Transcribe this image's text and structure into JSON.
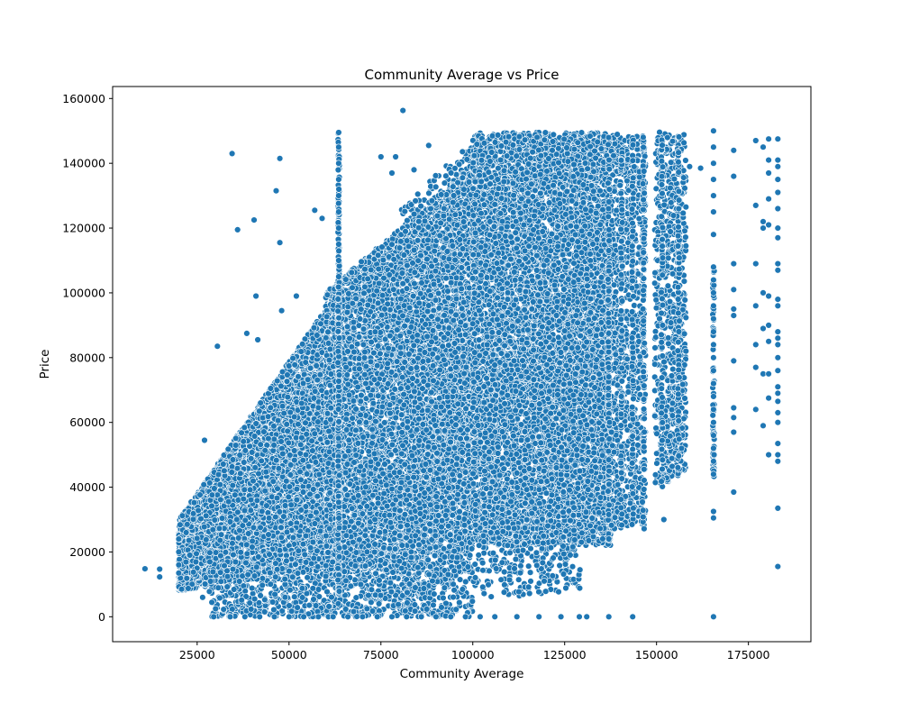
{
  "chart_data": {
    "type": "scatter",
    "title": "Community Average vs Price",
    "xlabel": "Community Average",
    "ylabel": "Price",
    "xlim": [
      2000,
      192000
    ],
    "ylim": [
      -7700,
      163700
    ],
    "xticks": [
      25000,
      50000,
      75000,
      100000,
      125000,
      150000,
      175000
    ],
    "yticks": [
      0,
      20000,
      40000,
      60000,
      80000,
      100000,
      120000,
      140000,
      160000
    ],
    "grid": false,
    "color": "#1f77b4",
    "series": [
      {
        "points": [
          [
            10800,
            14800
          ],
          [
            14800,
            14700
          ],
          [
            14800,
            12300
          ],
          [
            20000,
            24000
          ],
          [
            20000,
            20000
          ],
          [
            20000,
            16000
          ],
          [
            20000,
            13500
          ],
          [
            22000,
            26000
          ],
          [
            23000,
            19000
          ],
          [
            27000,
            54500
          ],
          [
            26500,
            6000
          ],
          [
            30500,
            83500
          ],
          [
            34500,
            143000
          ],
          [
            36000,
            119500
          ],
          [
            38500,
            87500
          ],
          [
            40500,
            122500
          ],
          [
            41000,
            99000
          ],
          [
            41500,
            85500
          ],
          [
            46500,
            131500
          ],
          [
            47500,
            141500
          ],
          [
            47500,
            115500
          ],
          [
            48000,
            94500
          ],
          [
            52000,
            99000
          ],
          [
            57000,
            125500
          ],
          [
            59000,
            123000
          ],
          [
            29500,
            0
          ],
          [
            34000,
            0
          ],
          [
            38000,
            0
          ],
          [
            42000,
            0
          ],
          [
            46000,
            0
          ],
          [
            50000,
            0
          ],
          [
            54000,
            0
          ],
          [
            58000,
            0
          ],
          [
            62000,
            0
          ],
          [
            66000,
            0
          ],
          [
            70000,
            0
          ],
          [
            74000,
            0
          ],
          [
            78000,
            0
          ],
          [
            82000,
            0
          ],
          [
            86000,
            0
          ],
          [
            90000,
            0
          ],
          [
            94000,
            0
          ],
          [
            98000,
            0
          ],
          [
            102000,
            0
          ],
          [
            106000,
            0
          ],
          [
            112000,
            0
          ],
          [
            118000,
            0
          ],
          [
            124000,
            0
          ],
          [
            129000,
            0
          ],
          [
            131000,
            0
          ],
          [
            137000,
            0
          ],
          [
            143500,
            0
          ],
          [
            165500,
            0
          ],
          [
            63500,
            149500
          ],
          [
            63500,
            145000
          ],
          [
            63500,
            140000
          ],
          [
            63500,
            135000
          ],
          [
            63500,
            130000
          ],
          [
            63500,
            125000
          ],
          [
            63500,
            120000
          ],
          [
            63500,
            115000
          ],
          [
            63500,
            110000
          ],
          [
            63500,
            105000
          ],
          [
            81000,
            156300
          ],
          [
            75000,
            142000
          ],
          [
            79000,
            142000
          ],
          [
            78000,
            137000
          ],
          [
            84000,
            138000
          ],
          [
            88000,
            145500
          ],
          [
            165500,
            150000
          ],
          [
            165500,
            145000
          ],
          [
            165500,
            140000
          ],
          [
            165500,
            135000
          ],
          [
            165500,
            130000
          ],
          [
            165500,
            125000
          ],
          [
            165500,
            118000
          ],
          [
            165500,
            108000
          ],
          [
            165500,
            104000
          ],
          [
            165500,
            100000
          ],
          [
            165500,
            96000
          ],
          [
            165500,
            92000
          ],
          [
            165500,
            88000
          ],
          [
            165500,
            84000
          ],
          [
            165500,
            80000
          ],
          [
            165500,
            76000
          ],
          [
            165500,
            72000
          ],
          [
            165500,
            68000
          ],
          [
            165500,
            64000
          ],
          [
            165500,
            60000
          ],
          [
            165500,
            56000
          ],
          [
            165500,
            52000
          ],
          [
            165500,
            48000
          ],
          [
            165500,
            44000
          ],
          [
            165500,
            32500
          ],
          [
            165500,
            30500
          ],
          [
            171000,
            144000
          ],
          [
            171000,
            136000
          ],
          [
            171000,
            109000
          ],
          [
            171000,
            101000
          ],
          [
            171000,
            95000
          ],
          [
            171000,
            93000
          ],
          [
            171000,
            79000
          ],
          [
            171000,
            64500
          ],
          [
            171000,
            61500
          ],
          [
            171000,
            57000
          ],
          [
            171000,
            38500
          ],
          [
            177000,
            147000
          ],
          [
            177000,
            127000
          ],
          [
            177000,
            109000
          ],
          [
            177000,
            96000
          ],
          [
            177000,
            84000
          ],
          [
            177000,
            77000
          ],
          [
            177000,
            64000
          ],
          [
            179000,
            145000
          ],
          [
            179000,
            122000
          ],
          [
            179000,
            120000
          ],
          [
            179000,
            100000
          ],
          [
            179000,
            89000
          ],
          [
            179000,
            75000
          ],
          [
            179000,
            59000
          ],
          [
            180500,
            147500
          ],
          [
            180500,
            141000
          ],
          [
            180500,
            137000
          ],
          [
            180500,
            129000
          ],
          [
            180500,
            121000
          ],
          [
            180500,
            99000
          ],
          [
            180500,
            90000
          ],
          [
            180500,
            85000
          ],
          [
            180500,
            75000
          ],
          [
            180500,
            67500
          ],
          [
            180500,
            50000
          ],
          [
            183000,
            147500
          ],
          [
            183000,
            141000
          ],
          [
            183000,
            139000
          ],
          [
            183000,
            135000
          ],
          [
            183000,
            131000
          ],
          [
            183000,
            126000
          ],
          [
            183000,
            120000
          ],
          [
            183000,
            117000
          ],
          [
            183000,
            109000
          ],
          [
            183000,
            107000
          ],
          [
            183000,
            98000
          ],
          [
            183000,
            96000
          ],
          [
            183000,
            88000
          ],
          [
            183000,
            86000
          ],
          [
            183000,
            84000
          ],
          [
            183000,
            80000
          ],
          [
            183000,
            76000
          ],
          [
            183000,
            71000
          ],
          [
            183000,
            69000
          ],
          [
            183000,
            66500
          ],
          [
            183000,
            63000
          ],
          [
            183000,
            60000
          ],
          [
            183000,
            53500
          ],
          [
            183000,
            50000
          ],
          [
            183000,
            48000
          ],
          [
            183000,
            33500
          ],
          [
            183000,
            15500
          ],
          [
            152000,
            30000
          ],
          [
            156000,
            60500
          ],
          [
            158000,
            82000
          ],
          [
            159000,
            139000
          ],
          [
            162000,
            138500
          ],
          [
            158000,
            126500
          ],
          [
            158000,
            114500
          ]
        ]
      }
    ],
    "density_regions": [
      {
        "x0": 20000,
        "x1": 60000,
        "ylow0": 8000,
        "ylow1": 15000,
        "yhigh0": 30000,
        "yhigh1": 95000,
        "n": 6500,
        "seed": 11
      },
      {
        "x0": 28000,
        "x1": 100000,
        "ylow0": 0,
        "ylow1": 0,
        "yhigh0": 20000,
        "yhigh1": 22000,
        "n": 1300,
        "seed": 23
      },
      {
        "x0": 60000,
        "x1": 100000,
        "ylow0": 12000,
        "ylow1": 22000,
        "yhigh0": 100000,
        "yhigh1": 140000,
        "n": 6500,
        "seed": 37
      },
      {
        "x0": 80000,
        "x1": 100000,
        "ylow0": 5000,
        "ylow1": 15000,
        "yhigh0": 125000,
        "yhigh1": 148000,
        "n": 1200,
        "seed": 41
      },
      {
        "x0": 100000,
        "x1": 137500,
        "ylow0": 22000,
        "ylow1": 22000,
        "yhigh0": 149500,
        "yhigh1": 149500,
        "n": 8500,
        "seed": 53
      },
      {
        "x0": 100000,
        "x1": 128000,
        "ylow0": 5000,
        "ylow1": 8000,
        "yhigh0": 30000,
        "yhigh1": 28000,
        "n": 280,
        "seed": 61
      },
      {
        "x0": 137500,
        "x1": 147000,
        "ylow0": 27000,
        "ylow1": 28000,
        "yhigh0": 149500,
        "yhigh1": 148000,
        "n": 900,
        "seed": 67
      },
      {
        "x0": 149500,
        "x1": 158000,
        "ylow0": 39000,
        "ylow1": 45000,
        "yhigh0": 150000,
        "yhigh1": 149000,
        "n": 700,
        "seed": 71
      }
    ],
    "vertical_streaks": [
      {
        "x": 63500,
        "y0": 5000,
        "y1": 150000,
        "n": 220
      },
      {
        "x": 165500,
        "y0": 43000,
        "y1": 108000,
        "n": 70
      },
      {
        "x": 156000,
        "y0": 44000,
        "y1": 150000,
        "n": 70
      },
      {
        "x": 151500,
        "y0": 40000,
        "y1": 148000,
        "n": 80
      },
      {
        "x": 146500,
        "y0": 27000,
        "y1": 149000,
        "n": 90
      },
      {
        "x": 143500,
        "y0": 28000,
        "y1": 149000,
        "n": 90
      },
      {
        "x": 140500,
        "y0": 27000,
        "y1": 148000,
        "n": 80
      },
      {
        "x": 137000,
        "y0": 21000,
        "y1": 149000,
        "n": 110
      },
      {
        "x": 129000,
        "y0": 8000,
        "y1": 15000,
        "n": 8
      }
    ]
  }
}
